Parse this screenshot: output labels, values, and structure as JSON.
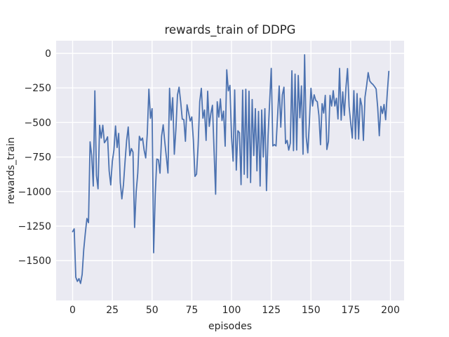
{
  "figure": {
    "title": "rewards_train of DDPG",
    "xlabel": "episodes",
    "ylabel": "rewards_train"
  },
  "chart_data": {
    "type": "line",
    "title": "rewards_train of DDPG",
    "xlabel": "episodes",
    "ylabel": "rewards_train",
    "style": "seaborn-darkgrid",
    "grid": true,
    "legend": false,
    "axes_bg_color": "#EAEAF2",
    "grid_color": "#FFFFFF",
    "line_color": "#4C72B0",
    "text_color": "#262626",
    "xlim": [
      -10.4,
      208.5
    ],
    "ylim": [
      -1790,
      92
    ],
    "x_ticks": [
      0,
      25,
      50,
      75,
      100,
      125,
      150,
      175,
      200
    ],
    "x_tick_labels": [
      "0",
      "25",
      "50",
      "75",
      "100",
      "125",
      "150",
      "175",
      "200"
    ],
    "y_ticks": [
      0,
      -250,
      -500,
      -750,
      -1000,
      -1250,
      -1500
    ],
    "y_tick_labels": [
      "0",
      "−250",
      "−500",
      "−750",
      "−1000",
      "−1250",
      "−1500"
    ],
    "series": [
      {
        "name": "rewards_train",
        "x_start": 0,
        "x_step": 1,
        "values": [
          -1290,
          -1270,
          -1620,
          -1650,
          -1630,
          -1665,
          -1600,
          -1420,
          -1300,
          -1195,
          -1225,
          -640,
          -740,
          -960,
          -271,
          -884,
          -980,
          -520,
          -613,
          -520,
          -647,
          -630,
          -604,
          -850,
          -952,
          -782,
          -700,
          -525,
          -681,
          -579,
          -935,
          -1053,
          -950,
          -782,
          -630,
          -533,
          -740,
          -689,
          -715,
          -1260,
          -1003,
          -867,
          -600,
          -630,
          -613,
          -700,
          -757,
          -579,
          -259,
          -470,
          -400,
          -1443,
          -1020,
          -765,
          -770,
          -867,
          -600,
          -517,
          -640,
          -750,
          -866,
          -253,
          -483,
          -321,
          -730,
          -550,
          -300,
          -245,
          -350,
          -475,
          -480,
          -636,
          -372,
          -430,
          -490,
          -460,
          -628,
          -890,
          -874,
          -661,
          -350,
          -253,
          -469,
          -410,
          -630,
          -274,
          -528,
          -435,
          -376,
          -700,
          -1019,
          -350,
          -461,
          -330,
          -486,
          -418,
          -672,
          -119,
          -271,
          -232,
          -600,
          -780,
          -265,
          -845,
          -560,
          -575,
          -950,
          -266,
          -875,
          -260,
          -900,
          -274,
          -935,
          -334,
          -740,
          -400,
          -850,
          -420,
          -960,
          -410,
          -750,
          -400,
          -993,
          -600,
          -350,
          -109,
          -670,
          -660,
          -670,
          -450,
          -236,
          -534,
          -300,
          -245,
          -653,
          -630,
          -700,
          -650,
          -126,
          -704,
          -150,
          -700,
          -160,
          -466,
          -236,
          -730,
          -10,
          -602,
          -720,
          -500,
          -253,
          -381,
          -300,
          -340,
          -350,
          -449,
          -661,
          -364,
          -432,
          -304,
          -696,
          -636,
          -304,
          -381,
          -270,
          -381,
          -325,
          -475,
          -109,
          -483,
          -279,
          -449,
          -250,
          -110,
          -384,
          -503,
          -613,
          -270,
          -620,
          -291,
          -620,
          -325,
          -380,
          -630,
          -317,
          -235,
          -139,
          -200,
          -215,
          -225,
          -240,
          -257,
          -393,
          -596,
          -384,
          -435,
          -370,
          -480,
          -290,
          -130
        ]
      }
    ]
  }
}
